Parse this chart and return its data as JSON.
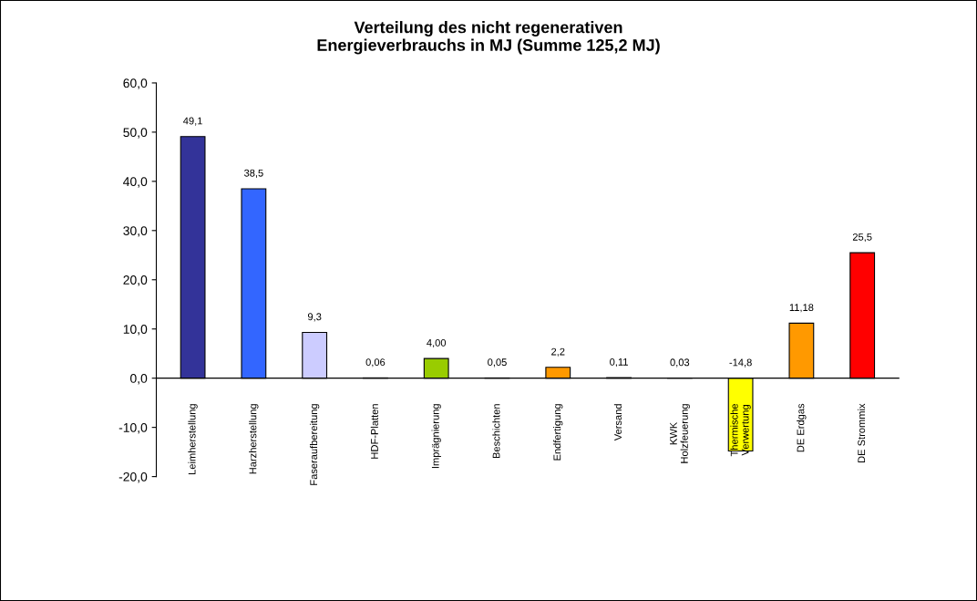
{
  "chart_data": {
    "type": "bar",
    "title": "Verteilung des nicht regenerativen\nEnergieverbrauchs in MJ (Summe 125,2 MJ)",
    "categories": [
      "Leimherstellung",
      "Harzherstellung",
      "Faseraufbereitung",
      "HDF-Platten",
      "Imprägnierung",
      "Beschichten",
      "Endfertigung",
      "Versand",
      "KWK\nHolzfeuerung",
      "Thermische\nVerwertung",
      "DE Erdgas",
      "DE Strommix"
    ],
    "values": [
      49.1,
      38.5,
      9.3,
      0.06,
      4.0,
      0.05,
      2.2,
      0.11,
      0.03,
      -14.8,
      11.18,
      25.5
    ],
    "colors": [
      "#333399",
      "#3366ff",
      "#ccccff",
      "#333333",
      "#99cc00",
      "#999999",
      "#ff9900",
      "#666666",
      "#993300",
      "#ffff00",
      "#ff9900",
      "#ff0000"
    ],
    "value_labels": [
      "49,1",
      "38,5",
      "9,3",
      "0,06",
      "4,00",
      "0,05",
      "2,2",
      "0,11",
      "0,03",
      "-14,8",
      "11,18",
      "25,5"
    ],
    "ylim": [
      -20,
      60
    ],
    "yticks": [
      {
        "value": -20,
        "label": "-20,0"
      },
      {
        "value": -10,
        "label": "-10,0"
      },
      {
        "value": 0,
        "label": "0,0"
      },
      {
        "value": 10,
        "label": "10,0"
      },
      {
        "value": 20,
        "label": "20,0"
      },
      {
        "value": 30,
        "label": "30,0"
      },
      {
        "value": 40,
        "label": "40,0"
      },
      {
        "value": 50,
        "label": "50,0"
      },
      {
        "value": 60,
        "label": "60,0"
      }
    ],
    "grid": false,
    "legend": false
  }
}
